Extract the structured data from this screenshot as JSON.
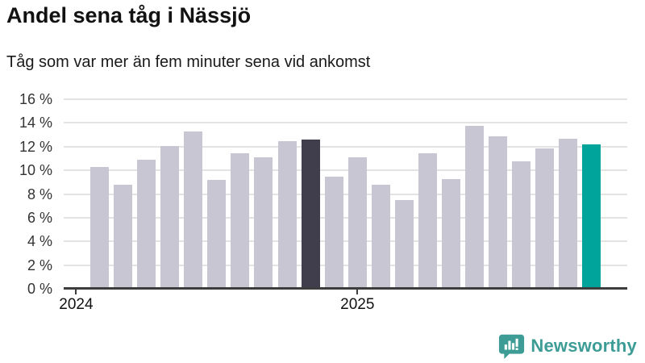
{
  "header": {
    "title": "Andel sena tåg i Nässjö",
    "subtitle": "Tåg som var mer än fem minuter sena vid ankomst"
  },
  "chart_data": {
    "type": "bar",
    "title": "Andel sena tåg i Nässjö",
    "subtitle": "Tåg som var mer än fem minuter sena vid ankomst",
    "values": [
      10.2,
      8.7,
      10.8,
      12.0,
      13.2,
      9.1,
      11.4,
      11.0,
      12.4,
      12.5,
      9.4,
      11.0,
      8.7,
      7.4,
      11.4,
      9.2,
      13.7,
      12.8,
      10.7,
      11.8,
      12.6,
      12.1
    ],
    "unit": "%",
    "ylim": [
      0,
      16
    ],
    "ytick_step": 2,
    "ytick_suffix": " %",
    "ytick_labels": [
      "0 %",
      "2 %",
      "4 %",
      "6 %",
      "8 %",
      "10 %",
      "12 %",
      "14 %",
      "16 %"
    ],
    "xtick_labels": [
      "2024",
      "2025"
    ],
    "xtick_slots": [
      -1,
      11
    ],
    "grid": true,
    "legend": "none",
    "bar_color": "#c8c6d2",
    "highlights": [
      {
        "index": 9,
        "color": "#403e4c"
      },
      {
        "index": 21,
        "color": "#00a49b"
      }
    ],
    "axis_color": "#3d3d3d",
    "grid_color": "#e3e3e3"
  },
  "logo": {
    "text": "Newsworthy",
    "icon": "newsworthy-barchart-speech-bubble-icon",
    "color": "#3d9c95"
  }
}
